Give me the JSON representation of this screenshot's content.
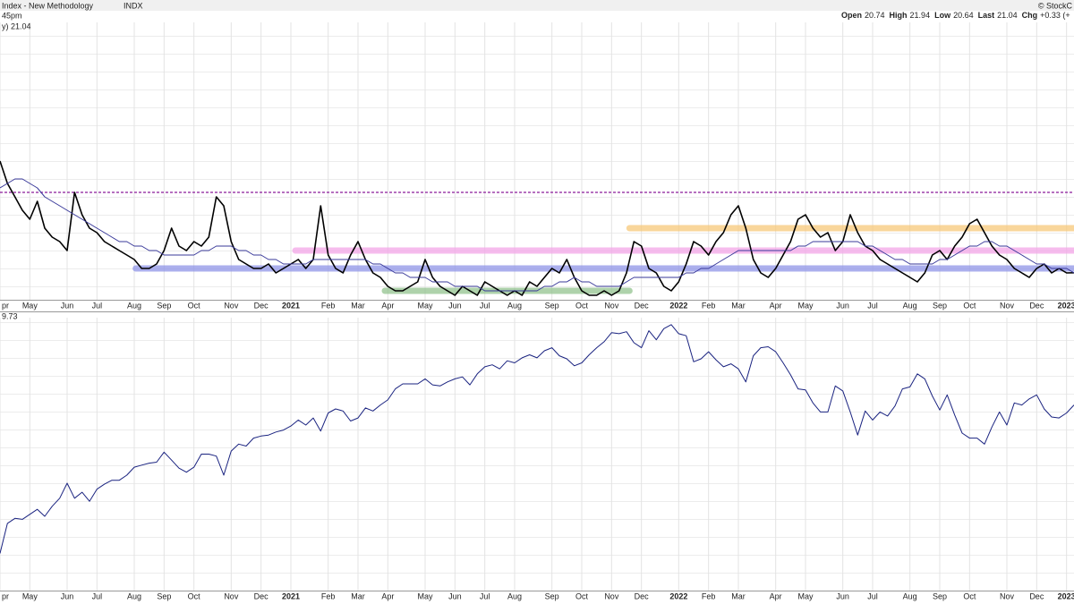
{
  "header": {
    "title": "Index - New Methodology",
    "symbol": "INDX",
    "time": "45pm",
    "copyright": "© StockC",
    "quote": [
      {
        "label": "Open",
        "value": "20.74"
      },
      {
        "label": "High",
        "value": "21.94"
      },
      {
        "label": "Low",
        "value": "20.64"
      },
      {
        "label": "Last",
        "value": "21.04"
      },
      {
        "label": "Chg",
        "value": "+0.33 (+"
      }
    ]
  },
  "chart_data": [
    {
      "type": "line",
      "label": "y) 21.04",
      "xlim": [
        0,
        144
      ],
      "ylim": [
        15,
        77
      ],
      "xticks": [
        {
          "value": 0,
          "label": "pr"
        },
        {
          "value": 4,
          "label": "May"
        },
        {
          "value": 9,
          "label": "Jun"
        },
        {
          "value": 13,
          "label": "Jul"
        },
        {
          "value": 18,
          "label": "Aug"
        },
        {
          "value": 22,
          "label": "Sep"
        },
        {
          "value": 26,
          "label": "Oct"
        },
        {
          "value": 31,
          "label": "Nov"
        },
        {
          "value": 35,
          "label": "Dec"
        },
        {
          "value": 39,
          "label": "2021"
        },
        {
          "value": 44,
          "label": "Feb"
        },
        {
          "value": 48,
          "label": "Mar"
        },
        {
          "value": 52,
          "label": "Apr"
        },
        {
          "value": 57,
          "label": "May"
        },
        {
          "value": 61,
          "label": "Jun"
        },
        {
          "value": 65,
          "label": "Jul"
        },
        {
          "value": 69,
          "label": "Aug"
        },
        {
          "value": 74,
          "label": "Sep"
        },
        {
          "value": 78,
          "label": "Oct"
        },
        {
          "value": 82,
          "label": "Nov"
        },
        {
          "value": 86,
          "label": "Dec"
        },
        {
          "value": 91,
          "label": "2022"
        },
        {
          "value": 95,
          "label": "Feb"
        },
        {
          "value": 99,
          "label": "Mar"
        },
        {
          "value": 104,
          "label": "Apr"
        },
        {
          "value": 108,
          "label": "May"
        },
        {
          "value": 113,
          "label": "Jun"
        },
        {
          "value": 117,
          "label": "Jul"
        },
        {
          "value": 122,
          "label": "Aug"
        },
        {
          "value": 126,
          "label": "Sep"
        },
        {
          "value": 130,
          "label": "Oct"
        },
        {
          "value": 135,
          "label": "Nov"
        },
        {
          "value": 139,
          "label": "Dec"
        },
        {
          "value": 143,
          "label": "2023"
        }
      ],
      "levels": [
        {
          "value": 39,
          "color": "#8b1a9b",
          "dashed": true,
          "x": [
            0,
            144
          ]
        },
        {
          "value": 31,
          "color": "#f7c97a",
          "dashed": false,
          "x": [
            84.4,
            144
          ]
        },
        {
          "value": 26,
          "color": "#f3a6e8",
          "dashed": false,
          "x": [
            39.6,
            144
          ]
        },
        {
          "value": 22,
          "color": "#8f95e8",
          "dashed": false,
          "x": [
            18.2,
            144
          ]
        },
        {
          "value": 17,
          "color": "#93c48f",
          "dashed": false,
          "x": [
            51.6,
            84.4
          ]
        }
      ],
      "series": [
        {
          "color": "#000000",
          "values": [
            46,
            41,
            38,
            35,
            33,
            37,
            31,
            29,
            28,
            26,
            39,
            34,
            31,
            30,
            28,
            27,
            26,
            25,
            24,
            22,
            22,
            23,
            26,
            31,
            27,
            26,
            28,
            27,
            29,
            38,
            36,
            28,
            24,
            23,
            22,
            22,
            23,
            21,
            22,
            23,
            24,
            22,
            24,
            36,
            25,
            22,
            21,
            25,
            28,
            24,
            21,
            20,
            18,
            17,
            17,
            18,
            19,
            24,
            20,
            18,
            17,
            16,
            18,
            17,
            16,
            19,
            18,
            17,
            16,
            17,
            16,
            19,
            18,
            20,
            22,
            21,
            24,
            20,
            17,
            16,
            16,
            17,
            16,
            17,
            21,
            28,
            27,
            22,
            21,
            18,
            17,
            19,
            23,
            28,
            27,
            25,
            28,
            30,
            34,
            36,
            31,
            24,
            21,
            20,
            22,
            25,
            28,
            33,
            34,
            31,
            29,
            30,
            26,
            28,
            34,
            30,
            27,
            26,
            24,
            23,
            22,
            21,
            20,
            19,
            21,
            25,
            26,
            24,
            27,
            29,
            32,
            33,
            30,
            27,
            25,
            24,
            22,
            21,
            20,
            22,
            23,
            21,
            22,
            21,
            21.04
          ]
        },
        {
          "color": "#3a3a9a",
          "values": [
            40,
            41,
            42,
            42,
            41,
            40,
            38,
            37,
            36,
            35,
            34,
            33,
            32,
            31,
            30,
            29,
            28,
            28,
            27,
            27,
            26,
            26,
            25,
            25,
            25,
            25,
            25,
            26,
            26,
            27,
            27,
            27,
            26,
            26,
            25,
            25,
            24,
            24,
            23,
            23,
            23,
            23,
            24,
            24,
            24,
            24,
            24,
            24,
            24,
            24,
            23,
            23,
            22,
            21,
            21,
            20,
            20,
            20,
            19,
            19,
            19,
            18,
            18,
            18,
            18,
            17,
            17,
            17,
            17,
            17,
            17,
            17,
            17,
            18,
            18,
            19,
            19,
            20,
            19,
            19,
            18,
            18,
            18,
            18,
            19,
            20,
            20,
            20,
            20,
            20,
            20,
            20,
            21,
            21,
            22,
            22,
            23,
            24,
            25,
            26,
            26,
            26,
            26,
            26,
            26,
            26,
            26,
            27,
            27,
            28,
            28,
            28,
            28,
            28,
            28,
            28,
            27,
            27,
            26,
            25,
            24,
            24,
            23,
            23,
            23,
            23,
            24,
            24,
            25,
            26,
            27,
            27,
            28,
            28,
            27,
            27,
            26,
            25,
            24,
            23,
            23,
            22,
            22,
            22,
            21
          ]
        }
      ]
    },
    {
      "type": "line",
      "label": "9.73",
      "xlim": [
        0,
        144
      ],
      "ylim": [
        2120,
        4840
      ],
      "xticks": [
        {
          "value": 0,
          "label": "pr"
        },
        {
          "value": 4,
          "label": "May"
        },
        {
          "value": 9,
          "label": "Jun"
        },
        {
          "value": 13,
          "label": "Jul"
        },
        {
          "value": 18,
          "label": "Aug"
        },
        {
          "value": 22,
          "label": "Sep"
        },
        {
          "value": 26,
          "label": "Oct"
        },
        {
          "value": 31,
          "label": "Nov"
        },
        {
          "value": 35,
          "label": "Dec"
        },
        {
          "value": 39,
          "label": "2021"
        },
        {
          "value": 44,
          "label": "Feb"
        },
        {
          "value": 48,
          "label": "Mar"
        },
        {
          "value": 52,
          "label": "Apr"
        },
        {
          "value": 57,
          "label": "May"
        },
        {
          "value": 61,
          "label": "Jun"
        },
        {
          "value": 65,
          "label": "Jul"
        },
        {
          "value": 69,
          "label": "Aug"
        },
        {
          "value": 74,
          "label": "Sep"
        },
        {
          "value": 78,
          "label": "Oct"
        },
        {
          "value": 82,
          "label": "Nov"
        },
        {
          "value": 86,
          "label": "Dec"
        },
        {
          "value": 91,
          "label": "2022"
        },
        {
          "value": 95,
          "label": "Feb"
        },
        {
          "value": 99,
          "label": "Mar"
        },
        {
          "value": 104,
          "label": "Apr"
        },
        {
          "value": 108,
          "label": "May"
        },
        {
          "value": 113,
          "label": "Jun"
        },
        {
          "value": 117,
          "label": "Jul"
        },
        {
          "value": 122,
          "label": "Aug"
        },
        {
          "value": 126,
          "label": "Sep"
        },
        {
          "value": 130,
          "label": "Oct"
        },
        {
          "value": 135,
          "label": "Nov"
        },
        {
          "value": 139,
          "label": "Dec"
        },
        {
          "value": 143,
          "label": "2023"
        }
      ],
      "series": [
        {
          "color": "#1a2380",
          "values": [
            2490,
            2790,
            2840,
            2830,
            2880,
            2930,
            2860,
            2960,
            3040,
            3190,
            3040,
            3100,
            3010,
            3130,
            3180,
            3220,
            3220,
            3270,
            3350,
            3370,
            3390,
            3400,
            3500,
            3420,
            3340,
            3300,
            3350,
            3480,
            3480,
            3460,
            3270,
            3510,
            3580,
            3560,
            3640,
            3660,
            3670,
            3700,
            3720,
            3760,
            3820,
            3770,
            3840,
            3710,
            3890,
            3930,
            3910,
            3810,
            3840,
            3940,
            3910,
            3970,
            4020,
            4130,
            4180,
            4180,
            4180,
            4230,
            4170,
            4160,
            4200,
            4230,
            4250,
            4170,
            4280,
            4350,
            4370,
            4330,
            4410,
            4390,
            4440,
            4470,
            4440,
            4510,
            4540,
            4460,
            4430,
            4360,
            4390,
            4470,
            4540,
            4600,
            4690,
            4680,
            4700,
            4590,
            4540,
            4710,
            4620,
            4730,
            4770,
            4680,
            4660,
            4400,
            4430,
            4500,
            4420,
            4350,
            4380,
            4330,
            4200,
            4460,
            4540,
            4550,
            4500,
            4390,
            4270,
            4130,
            4120,
            3990,
            3900,
            3900,
            4160,
            4110,
            3900,
            3670,
            3910,
            3820,
            3900,
            3860,
            3960,
            4130,
            4150,
            4280,
            4230,
            4060,
            3920,
            4070,
            3870,
            3690,
            3640,
            3640,
            3580,
            3750,
            3900,
            3770,
            3990,
            3970,
            4030,
            4070,
            3930,
            3850,
            3840,
            3890,
            3970
          ]
        }
      ]
    }
  ]
}
